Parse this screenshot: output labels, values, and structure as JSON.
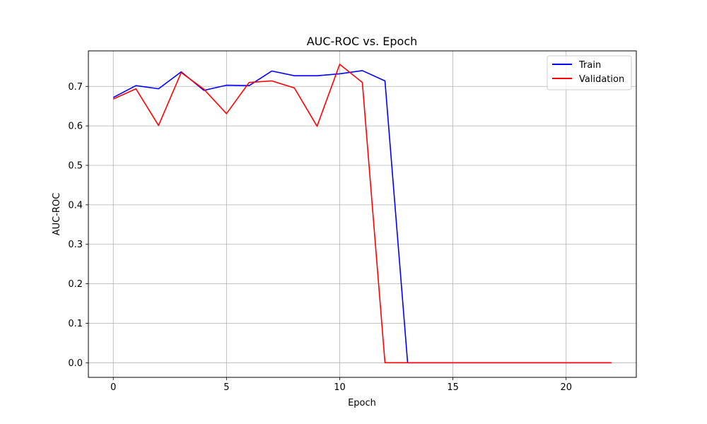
{
  "chart_data": {
    "type": "line",
    "title": "AUC-ROC vs. Epoch",
    "xlabel": "Epoch",
    "ylabel": "AUC-ROC",
    "xlim": [
      -1.1,
      23.1
    ],
    "ylim": [
      -0.037,
      0.79
    ],
    "xticks": [
      0,
      5,
      10,
      15,
      20
    ],
    "yticks": [
      0.0,
      0.1,
      0.2,
      0.3,
      0.4,
      0.5,
      0.6,
      0.7
    ],
    "grid": true,
    "legend_position": "top-right",
    "series": [
      {
        "name": "Train",
        "color": "#0000ff",
        "x": [
          0,
          1,
          2,
          3,
          4,
          5,
          6,
          7,
          8,
          9,
          10,
          11,
          12,
          13,
          14,
          15,
          16,
          17,
          18,
          19,
          20,
          21,
          22
        ],
        "y": [
          0.672,
          0.702,
          0.694,
          0.737,
          0.69,
          0.703,
          0.702,
          0.739,
          0.727,
          0.727,
          0.732,
          0.74,
          0.714,
          0.0,
          0.0,
          0.0,
          0.0,
          0.0,
          0.0,
          0.0,
          0.0,
          0.0,
          0.0
        ]
      },
      {
        "name": "Validation",
        "color": "#ff0000",
        "x": [
          0,
          1,
          2,
          3,
          4,
          5,
          6,
          7,
          8,
          9,
          10,
          11,
          12,
          13,
          14,
          15,
          16,
          17,
          18,
          19,
          20,
          21,
          22
        ],
        "y": [
          0.668,
          0.694,
          0.601,
          0.735,
          0.693,
          0.631,
          0.71,
          0.714,
          0.696,
          0.599,
          0.756,
          0.71,
          0.0,
          0.0,
          0.0,
          0.0,
          0.0,
          0.0,
          0.0,
          0.0,
          0.0,
          0.0,
          0.0
        ]
      }
    ]
  }
}
